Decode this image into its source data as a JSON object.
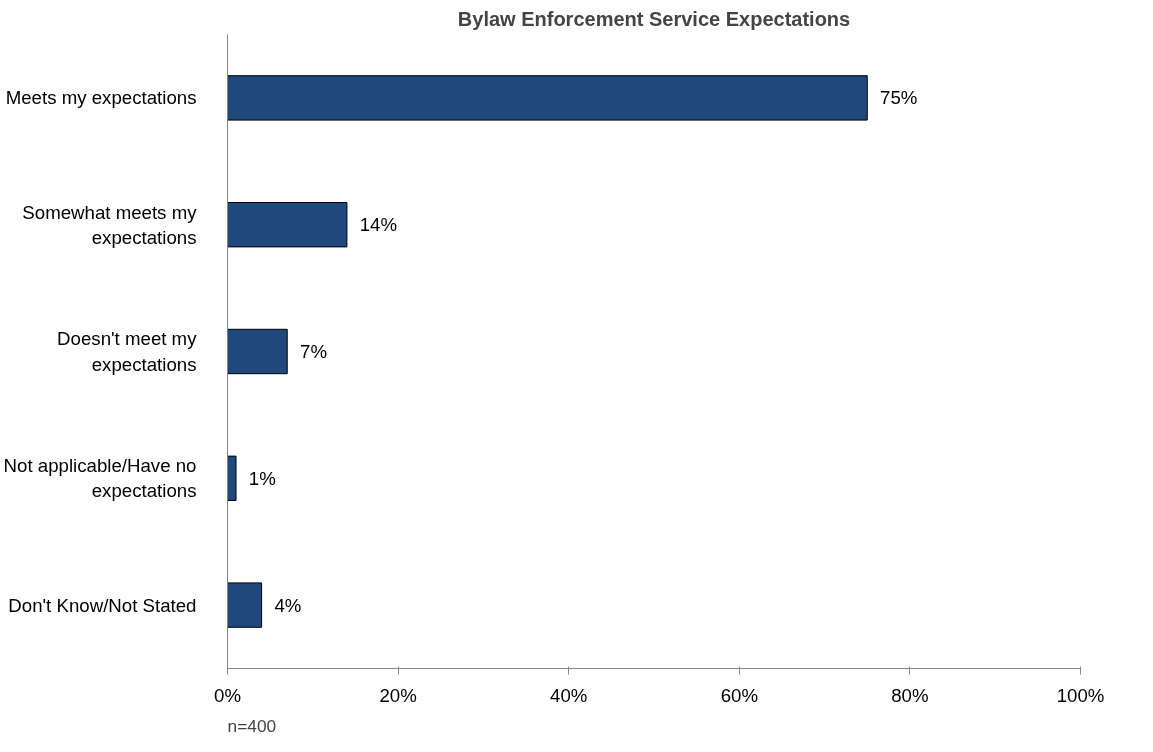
{
  "chart_data": {
    "type": "bar",
    "orientation": "horizontal",
    "title": "Bylaw Enforcement Service Expectations",
    "categories": [
      "Meets my expectations",
      "Somewhat meets my expectations",
      "Doesn't meet my expectations",
      "Not applicable/Have no expectations",
      "Don't Know/Not Stated"
    ],
    "values": [
      75,
      14,
      7,
      1,
      4
    ],
    "color": "#1f497d",
    "xlim": [
      0,
      100
    ],
    "xticks": [
      {
        "value": 0,
        "label": "0%"
      },
      {
        "value": 20,
        "label": "20%"
      },
      {
        "value": 40,
        "label": "40%"
      },
      {
        "value": 60,
        "label": "60%"
      },
      {
        "value": 80,
        "label": "80%"
      },
      {
        "value": 100,
        "label": "100%"
      }
    ],
    "value_labels": [
      "75%",
      "14%",
      "7%",
      "1%",
      "4%"
    ],
    "annotations": [
      "n=400"
    ],
    "grid": false
  }
}
